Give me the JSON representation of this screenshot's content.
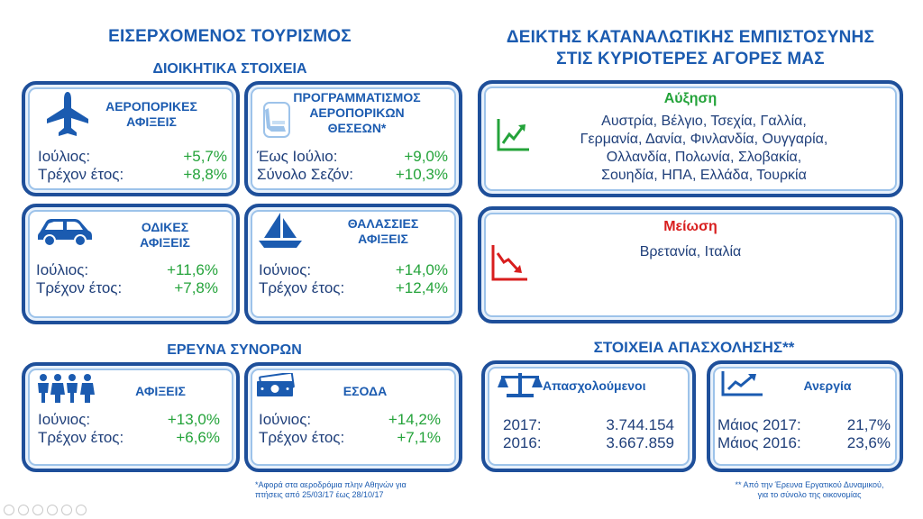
{
  "left": {
    "title": "ΕΙΣΕΡΧΟΜΕΝΟΣ ΤΟΥΡΙΣΜΟΣ",
    "admin_subtitle": "ΔΙΟΙΚΗΤΙΚΑ ΣΤΟΙΧΕΙΑ",
    "air": {
      "title_line1": "ΑΕΡΟΠΟΡΙΚΕΣ",
      "title_line2": "ΑΦΙΞΕΙΣ",
      "rows": [
        {
          "label": "Ιούλιος:",
          "value": "+5,7%"
        },
        {
          "label": "Τρέχον έτος:",
          "value": "+8,8%"
        }
      ]
    },
    "seats": {
      "title_line1": "ΠΡΟΓΡΑΜΜΑΤΙΣΜΟΣ",
      "title_line2": "ΑΕΡΟΠΟΡΙΚΩΝ",
      "title_line3": "ΘΕΣΕΩΝ*",
      "rows": [
        {
          "label": "Έως Ιούλιο:",
          "value": "+9,0%"
        },
        {
          "label": "Σύνολο Σεζόν:",
          "value": "+10,3%"
        }
      ]
    },
    "road": {
      "title_line1": "ΟΔΙΚΕΣ",
      "title_line2": "ΑΦΙΞΕΙΣ",
      "rows": [
        {
          "label": "Ιούλιος:",
          "value": "+11,6%"
        },
        {
          "label": "Τρέχον έτος:",
          "value": "+7,8%"
        }
      ]
    },
    "sea": {
      "title_line1": "ΘΑΛΑΣΣΙΕΣ",
      "title_line2": "ΑΦΙΞΕΙΣ",
      "rows": [
        {
          "label": "Ιούνιος:",
          "value": "+14,0%"
        },
        {
          "label": "Τρέχον έτος:",
          "value": "+12,4%"
        }
      ]
    },
    "border_subtitle": "ΕΡΕΥΝΑ ΣΥΝΟΡΩΝ",
    "arrivals": {
      "title": "ΑΦΙΞΕΙΣ",
      "rows": [
        {
          "label": "Ιούνιος:",
          "value": "+13,0%"
        },
        {
          "label": "Τρέχον έτος:",
          "value": "+6,6%"
        }
      ]
    },
    "revenue": {
      "title": "ΕΣΟΔΑ",
      "rows": [
        {
          "label": "Ιούνιος:",
          "value": "+14,2%"
        },
        {
          "label": "Τρέχον έτος:",
          "value": "+7,1%"
        }
      ]
    },
    "footnote_line1": "*Αφορά στα αεροδρόμια πλην Αθηνών για",
    "footnote_line2": "πτήσεις από 25/03/17 έως 28/10/17"
  },
  "right": {
    "title_line1": "ΔΕΙΚΤΗΣ ΚΑΤΑΝΑΛΩΤΙΚΗΣ ΕΜΠΙΣΤΟΣΥΝΗΣ",
    "title_line2": "ΣΤΙΣ ΚΥΡΙΟΤΕΡΕΣ ΑΓΟΡΕΣ ΜΑΣ",
    "increase": {
      "title": "Αύξηση",
      "lines": [
        "Αυστρία, Βέλγιο, Τσεχία, Γαλλία,",
        "Γερμανία, Δανία, Φινλανδία, Ουγγαρία,",
        "Ολλανδία, Πολωνία, Σλοβακία,",
        "Σουηδία, ΗΠΑ, Ελλάδα, Τουρκία"
      ]
    },
    "decrease": {
      "title": "Μείωση",
      "lines": [
        "Βρετανία, Ιταλία"
      ]
    },
    "employment_title": "ΣΤΟΙΧΕΙΑ ΑΠΑΣΧΟΛΗΣΗΣ**",
    "employed": {
      "title": "Απασχολούμενοι",
      "rows": [
        {
          "label": "2017:",
          "value": "3.744.154"
        },
        {
          "label": "2016:",
          "value": "3.667.859"
        }
      ]
    },
    "unemployment": {
      "title": "Ανεργία",
      "rows": [
        {
          "label": "Μάιος 2017:",
          "value": "21,7%"
        },
        {
          "label": "Μάιος 2016:",
          "value": "23,6%"
        }
      ]
    },
    "footnote_line1": "** Από την Έρευνα Εργατικού Δυναμικού,",
    "footnote_line2": "για το σύνολο της οικονομίας"
  },
  "colors": {
    "title_blue": "#1b5bb0",
    "border_blue": "#1e4f9a",
    "green": "#24a33a",
    "red": "#d81e1e"
  },
  "icons": [
    "airplane-icon",
    "airplane-seat-icon",
    "car-icon",
    "sailboat-icon",
    "people-icon",
    "banknote-icon",
    "trend-up-icon",
    "trend-down-icon",
    "balance-scale-icon",
    "unemployment-chart-icon"
  ]
}
